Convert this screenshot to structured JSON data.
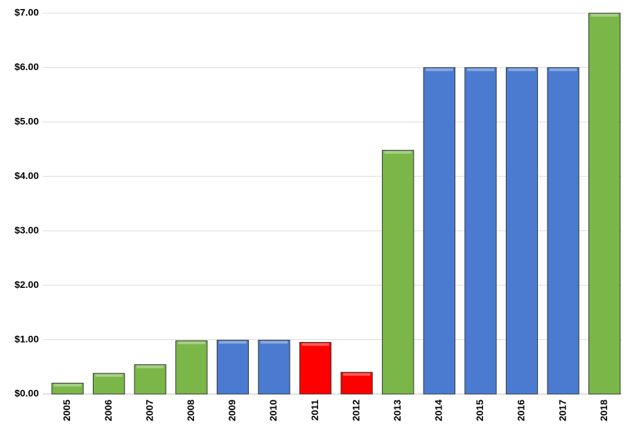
{
  "chart_data": {
    "type": "bar",
    "categories": [
      "2005",
      "2006",
      "2007",
      "2008",
      "2009",
      "2010",
      "2011",
      "2012",
      "2013",
      "2014",
      "2015",
      "2016",
      "2017",
      "2018"
    ],
    "values": [
      0.2,
      0.38,
      0.54,
      0.98,
      0.99,
      0.99,
      0.95,
      0.4,
      4.48,
      6.0,
      6.0,
      6.0,
      6.0,
      7.0
    ],
    "colors": [
      "#7ab648",
      "#7ab648",
      "#7ab648",
      "#7ab648",
      "#4a7bd0",
      "#4a7bd0",
      "#ff0000",
      "#ff0000",
      "#7ab648",
      "#4a7bd0",
      "#4a7bd0",
      "#4a7bd0",
      "#4a7bd0",
      "#7ab648"
    ],
    "ylim": [
      0,
      7
    ],
    "yticks": [
      {
        "value": 0,
        "label": "$0.00"
      },
      {
        "value": 1,
        "label": "$1.00"
      },
      {
        "value": 2,
        "label": "$2.00"
      },
      {
        "value": 3,
        "label": "$3.00"
      },
      {
        "value": 4,
        "label": "$4.00"
      },
      {
        "value": 5,
        "label": "$5.00"
      },
      {
        "value": 6,
        "label": "$6.00"
      },
      {
        "value": 7,
        "label": "$7.00"
      }
    ],
    "grid": true
  }
}
